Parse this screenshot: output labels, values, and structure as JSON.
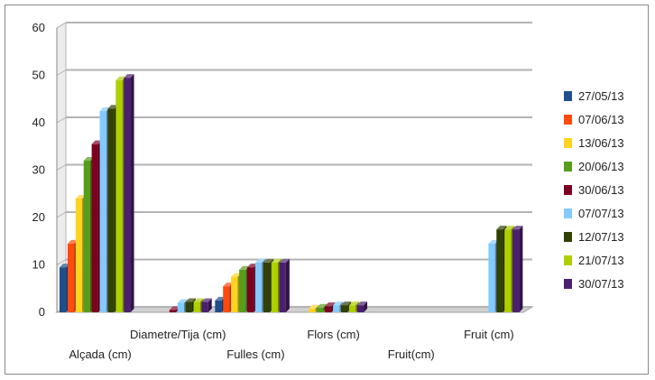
{
  "chart_data": {
    "type": "bar",
    "title": "",
    "xlabel": "",
    "ylabel": "",
    "ylim": [
      0,
      60
    ],
    "yticks": [
      0,
      10,
      20,
      30,
      40,
      50,
      60
    ],
    "grid": true,
    "legend_position": "right",
    "categories": [
      "Alçada (cm)",
      "Diametre/Tija (cm)",
      "Fulles (cm)",
      "Flors (cm)",
      "Fruit(cm)",
      "Fruit (cm)"
    ],
    "series": [
      {
        "name": "27/05/13",
        "color": "#1f4e8c",
        "values": [
          9.5,
          0,
          2.5,
          0,
          0,
          0
        ]
      },
      {
        "name": "07/06/13",
        "color": "#ff4a10",
        "values": [
          14.5,
          0,
          5.5,
          0,
          0,
          0
        ]
      },
      {
        "name": "13/06/13",
        "color": "#ffd320",
        "values": [
          24,
          0,
          7.5,
          0.8,
          0,
          0
        ]
      },
      {
        "name": "20/06/13",
        "color": "#579d1c",
        "values": [
          32,
          0,
          9,
          1,
          0,
          0
        ]
      },
      {
        "name": "30/06/13",
        "color": "#7e0021",
        "values": [
          35.5,
          0.5,
          9.5,
          1.3,
          0,
          0
        ]
      },
      {
        "name": "07/07/13",
        "color": "#83caff",
        "values": [
          42.5,
          2,
          10.5,
          1.5,
          0,
          14.5
        ]
      },
      {
        "name": "12/07/13",
        "color": "#314004",
        "values": [
          43,
          2.2,
          10.5,
          1.5,
          0,
          17.5
        ]
      },
      {
        "name": "21/07/13",
        "color": "#aecf00",
        "values": [
          49,
          2.2,
          10.5,
          1.5,
          0,
          17.5
        ]
      },
      {
        "name": "30/07/13",
        "color": "#4b1f6f",
        "values": [
          49.5,
          2.2,
          10.5,
          1.5,
          0,
          17.5
        ]
      }
    ]
  }
}
